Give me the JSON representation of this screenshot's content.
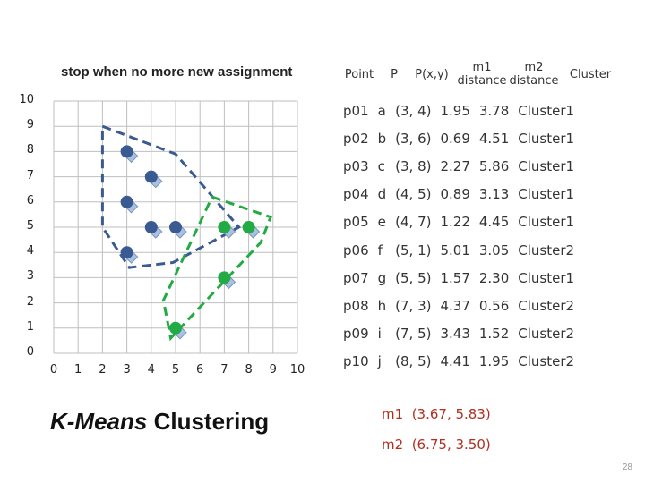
{
  "heading": "stop when no more new assignment",
  "table": {
    "headers": {
      "point": "Point",
      "p": "P",
      "pxy": "P(x,y)",
      "m1": "m1 distance",
      "m2": "m2 distance",
      "cluster": "Cluster"
    },
    "rows": [
      {
        "point": "p01",
        "p": "a",
        "xy": "(3, 4)",
        "m1": "1.95",
        "m2": "3.78",
        "cluster": "Cluster1"
      },
      {
        "point": "p02",
        "p": "b",
        "xy": "(3, 6)",
        "m1": "0.69",
        "m2": "4.51",
        "cluster": "Cluster1"
      },
      {
        "point": "p03",
        "p": "c",
        "xy": "(3, 8)",
        "m1": "2.27",
        "m2": "5.86",
        "cluster": "Cluster1"
      },
      {
        "point": "p04",
        "p": "d",
        "xy": "(4, 5)",
        "m1": "0.89",
        "m2": "3.13",
        "cluster": "Cluster1"
      },
      {
        "point": "p05",
        "p": "e",
        "xy": "(4, 7)",
        "m1": "1.22",
        "m2": "4.45",
        "cluster": "Cluster1"
      },
      {
        "point": "p06",
        "p": "f",
        "xy": "(5, 1)",
        "m1": "5.01",
        "m2": "3.05",
        "cluster": "Cluster2"
      },
      {
        "point": "p07",
        "p": "g",
        "xy": "(5, 5)",
        "m1": "1.57",
        "m2": "2.30",
        "cluster": "Cluster1"
      },
      {
        "point": "p08",
        "p": "h",
        "xy": "(7, 3)",
        "m1": "4.37",
        "m2": "0.56",
        "cluster": "Cluster2"
      },
      {
        "point": "p09",
        "p": "i",
        "xy": "(7, 5)",
        "m1": "3.43",
        "m2": "1.52",
        "cluster": "Cluster2"
      },
      {
        "point": "p10",
        "p": "j",
        "xy": "(8, 5)",
        "m1": "4.41",
        "m2": "1.95",
        "cluster": "Cluster2"
      }
    ]
  },
  "centroids": [
    {
      "label": "m1",
      "value": "(3.67, 5.83)"
    },
    {
      "label": "m2",
      "value": "(6.75, 3.50)"
    }
  ],
  "caption": {
    "italic": "K-Means",
    "rest": " Clustering"
  },
  "page_number": "28",
  "colors": {
    "cluster1": "#3a5a92",
    "cluster2": "#22aa44",
    "marker": "#a9c1e3",
    "centroid_text": "#b03020"
  },
  "plot": {
    "x_ticks": [
      "0",
      "1",
      "2",
      "3",
      "4",
      "5",
      "6",
      "7",
      "8",
      "9",
      "10"
    ],
    "y_ticks": [
      "0",
      "1",
      "2",
      "3",
      "4",
      "5",
      "6",
      "7",
      "8",
      "9",
      "10"
    ],
    "blue_points": [
      [
        3,
        8
      ],
      [
        3,
        6
      ],
      [
        4,
        7
      ],
      [
        4,
        5
      ],
      [
        5,
        5
      ],
      [
        3,
        4
      ]
    ],
    "green_points": [
      [
        7,
        5
      ],
      [
        8,
        5
      ],
      [
        7,
        3
      ],
      [
        5,
        1
      ]
    ],
    "blue_hull": [
      [
        2,
        9
      ],
      [
        5,
        7.9
      ],
      [
        7.6,
        5
      ],
      [
        4.9,
        3.6
      ],
      [
        3.1,
        3.4
      ],
      [
        2,
        5
      ]
    ],
    "green_hull": [
      [
        6.5,
        6.2
      ],
      [
        8.9,
        5.4
      ],
      [
        8.5,
        4.4
      ],
      [
        4.8,
        0.6
      ],
      [
        4.5,
        2.1
      ]
    ]
  }
}
